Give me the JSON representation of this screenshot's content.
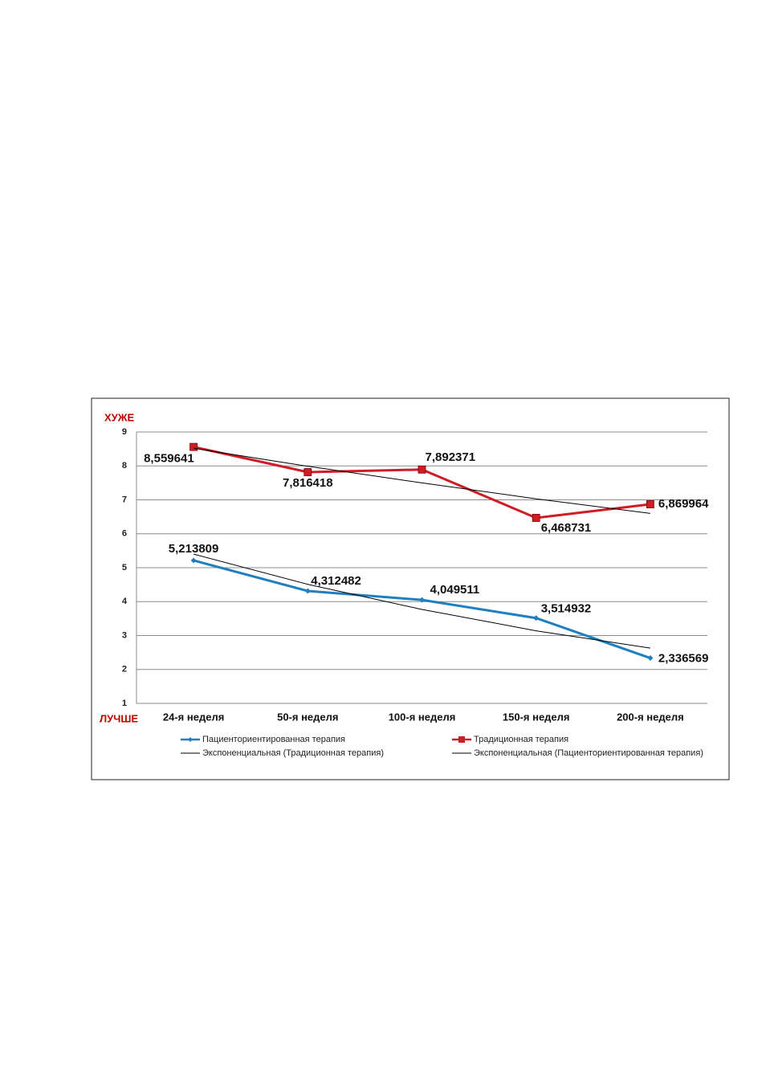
{
  "chart_data": {
    "type": "line",
    "y_top_label": "ХУЖЕ",
    "y_bottom_label": "ЛУЧШЕ",
    "categories": [
      "24-я неделя",
      "50-я неделя",
      "100-я неделя",
      "150-я неделя",
      "200-я неделя"
    ],
    "ylim": [
      1,
      9
    ],
    "yticks": [
      1,
      2,
      3,
      4,
      5,
      6,
      7,
      8,
      9
    ],
    "grid": true,
    "series": [
      {
        "name": "Пациенториентированная терапия",
        "color": "#1f7fc0",
        "marker": "diamond",
        "values": [
          5.213809,
          4.312482,
          4.049511,
          3.514932,
          2.336569
        ],
        "value_labels": [
          "5,213809",
          "4,312482",
          "4,049511",
          "3,514932",
          "2,336569"
        ]
      },
      {
        "name": "Традиционная терапия",
        "color": "#d01c24",
        "marker": "square",
        "values": [
          8.559641,
          7.816418,
          7.892371,
          6.468731,
          6.869964
        ],
        "value_labels": [
          "8,559641",
          "7,816418",
          "7,892371",
          "6,468731",
          "6,869964"
        ]
      },
      {
        "name": "Экспоненциальная (Традиционная терапия)",
        "color": "#000000",
        "values": [
          8.52,
          7.99,
          7.5,
          7.03,
          6.6
        ]
      },
      {
        "name": "Экспоненциальная (Пациенториентированная терапия)",
        "color": "#000000",
        "values": [
          5.4,
          4.51,
          3.77,
          3.14,
          2.63
        ]
      }
    ]
  }
}
